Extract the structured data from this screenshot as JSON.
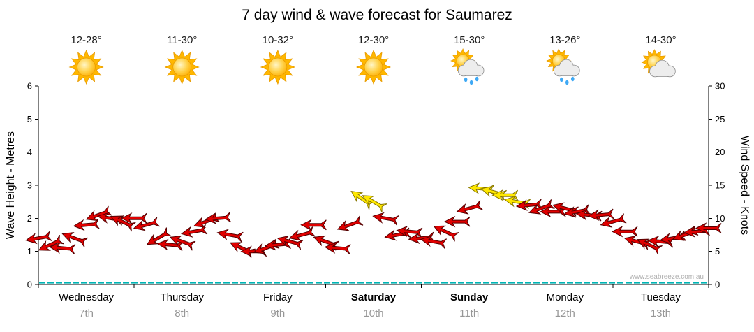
{
  "watermark": "www.seabreeze.com.au",
  "days": [
    {
      "name": "Wednesday",
      "date": "7th",
      "temp": "12-28°",
      "icon": "sun",
      "bold": false
    },
    {
      "name": "Thursday",
      "date": "8th",
      "temp": "11-30°",
      "icon": "sun",
      "bold": false
    },
    {
      "name": "Friday",
      "date": "9th",
      "temp": "10-32°",
      "icon": "sun",
      "bold": false
    },
    {
      "name": "Saturday",
      "date": "10th",
      "temp": "12-30°",
      "icon": "sun",
      "bold": true
    },
    {
      "name": "Sunday",
      "date": "11th",
      "temp": "15-30°",
      "icon": "sun-shower",
      "bold": true
    },
    {
      "name": "Monday",
      "date": "12th",
      "temp": "13-26°",
      "icon": "sun-shower",
      "bold": false
    },
    {
      "name": "Tuesday",
      "date": "13th",
      "temp": "14-30°",
      "icon": "sun-cloud",
      "bold": false
    }
  ],
  "chart_data": {
    "type": "scatter",
    "title": "7 day wind & wave forecast for Saumarez",
    "x_axis": {
      "days": [
        "Wednesday 7th",
        "Thursday 8th",
        "Friday 9th",
        "Saturday 10th",
        "Sunday 11th",
        "Monday 12th",
        "Tuesday 13th"
      ],
      "points_per_day": 8,
      "step_hours": 3
    },
    "y_left": {
      "label": "Wave Height - Metres",
      "range": [
        0,
        6
      ],
      "ticks": [
        0,
        1,
        2,
        3,
        4,
        5,
        6
      ]
    },
    "y_right": {
      "label": "Wind Speed - Knots",
      "range": [
        0,
        30
      ],
      "ticks": [
        0,
        5,
        10,
        15,
        20,
        25,
        30
      ]
    },
    "grid": false,
    "series": [
      {
        "name": "Wind speed (knots)",
        "style": "wind-arrows",
        "values": [
          7,
          6,
          5.5,
          7,
          9,
          10.5,
          10,
          9.5,
          10,
          9,
          7,
          6,
          6.5,
          8,
          9.5,
          10,
          7.5,
          5.5,
          5,
          5.5,
          6,
          6.5,
          7.5,
          9,
          6.5,
          5.5,
          9,
          13,
          12.5,
          10,
          7.5,
          8,
          7,
          6.5,
          8,
          9.5,
          11.5,
          14.5,
          14,
          13.5,
          12.5,
          12,
          11.5,
          11,
          11.5,
          11,
          10.5,
          10.5,
          9.5,
          8,
          6.5,
          6,
          6.5,
          7,
          7.5,
          8,
          8.5
        ],
        "directions_deg": [
          170,
          155,
          185,
          200,
          175,
          160,
          190,
          205,
          180,
          165,
          150,
          185,
          200,
          170,
          160,
          175,
          190,
          205,
          180,
          160,
          175,
          195,
          165,
          180,
          200,
          185,
          160,
          215,
          210,
          190,
          170,
          185,
          175,
          190,
          205,
          180,
          165,
          185,
          195,
          180,
          190,
          175,
          160,
          180,
          195,
          170,
          185,
          175,
          165,
          180,
          195,
          205,
          185,
          170,
          160,
          175,
          180
        ]
      },
      {
        "name": "Wave height (m)",
        "style": "line",
        "constant_value_m": 0.05
      }
    ],
    "yellow_threshold_knots": 12.5,
    "colors": {
      "arrow_red": "#E00000",
      "arrow_yellow": "#FFE800",
      "wave_line": "#00B4B4"
    }
  }
}
